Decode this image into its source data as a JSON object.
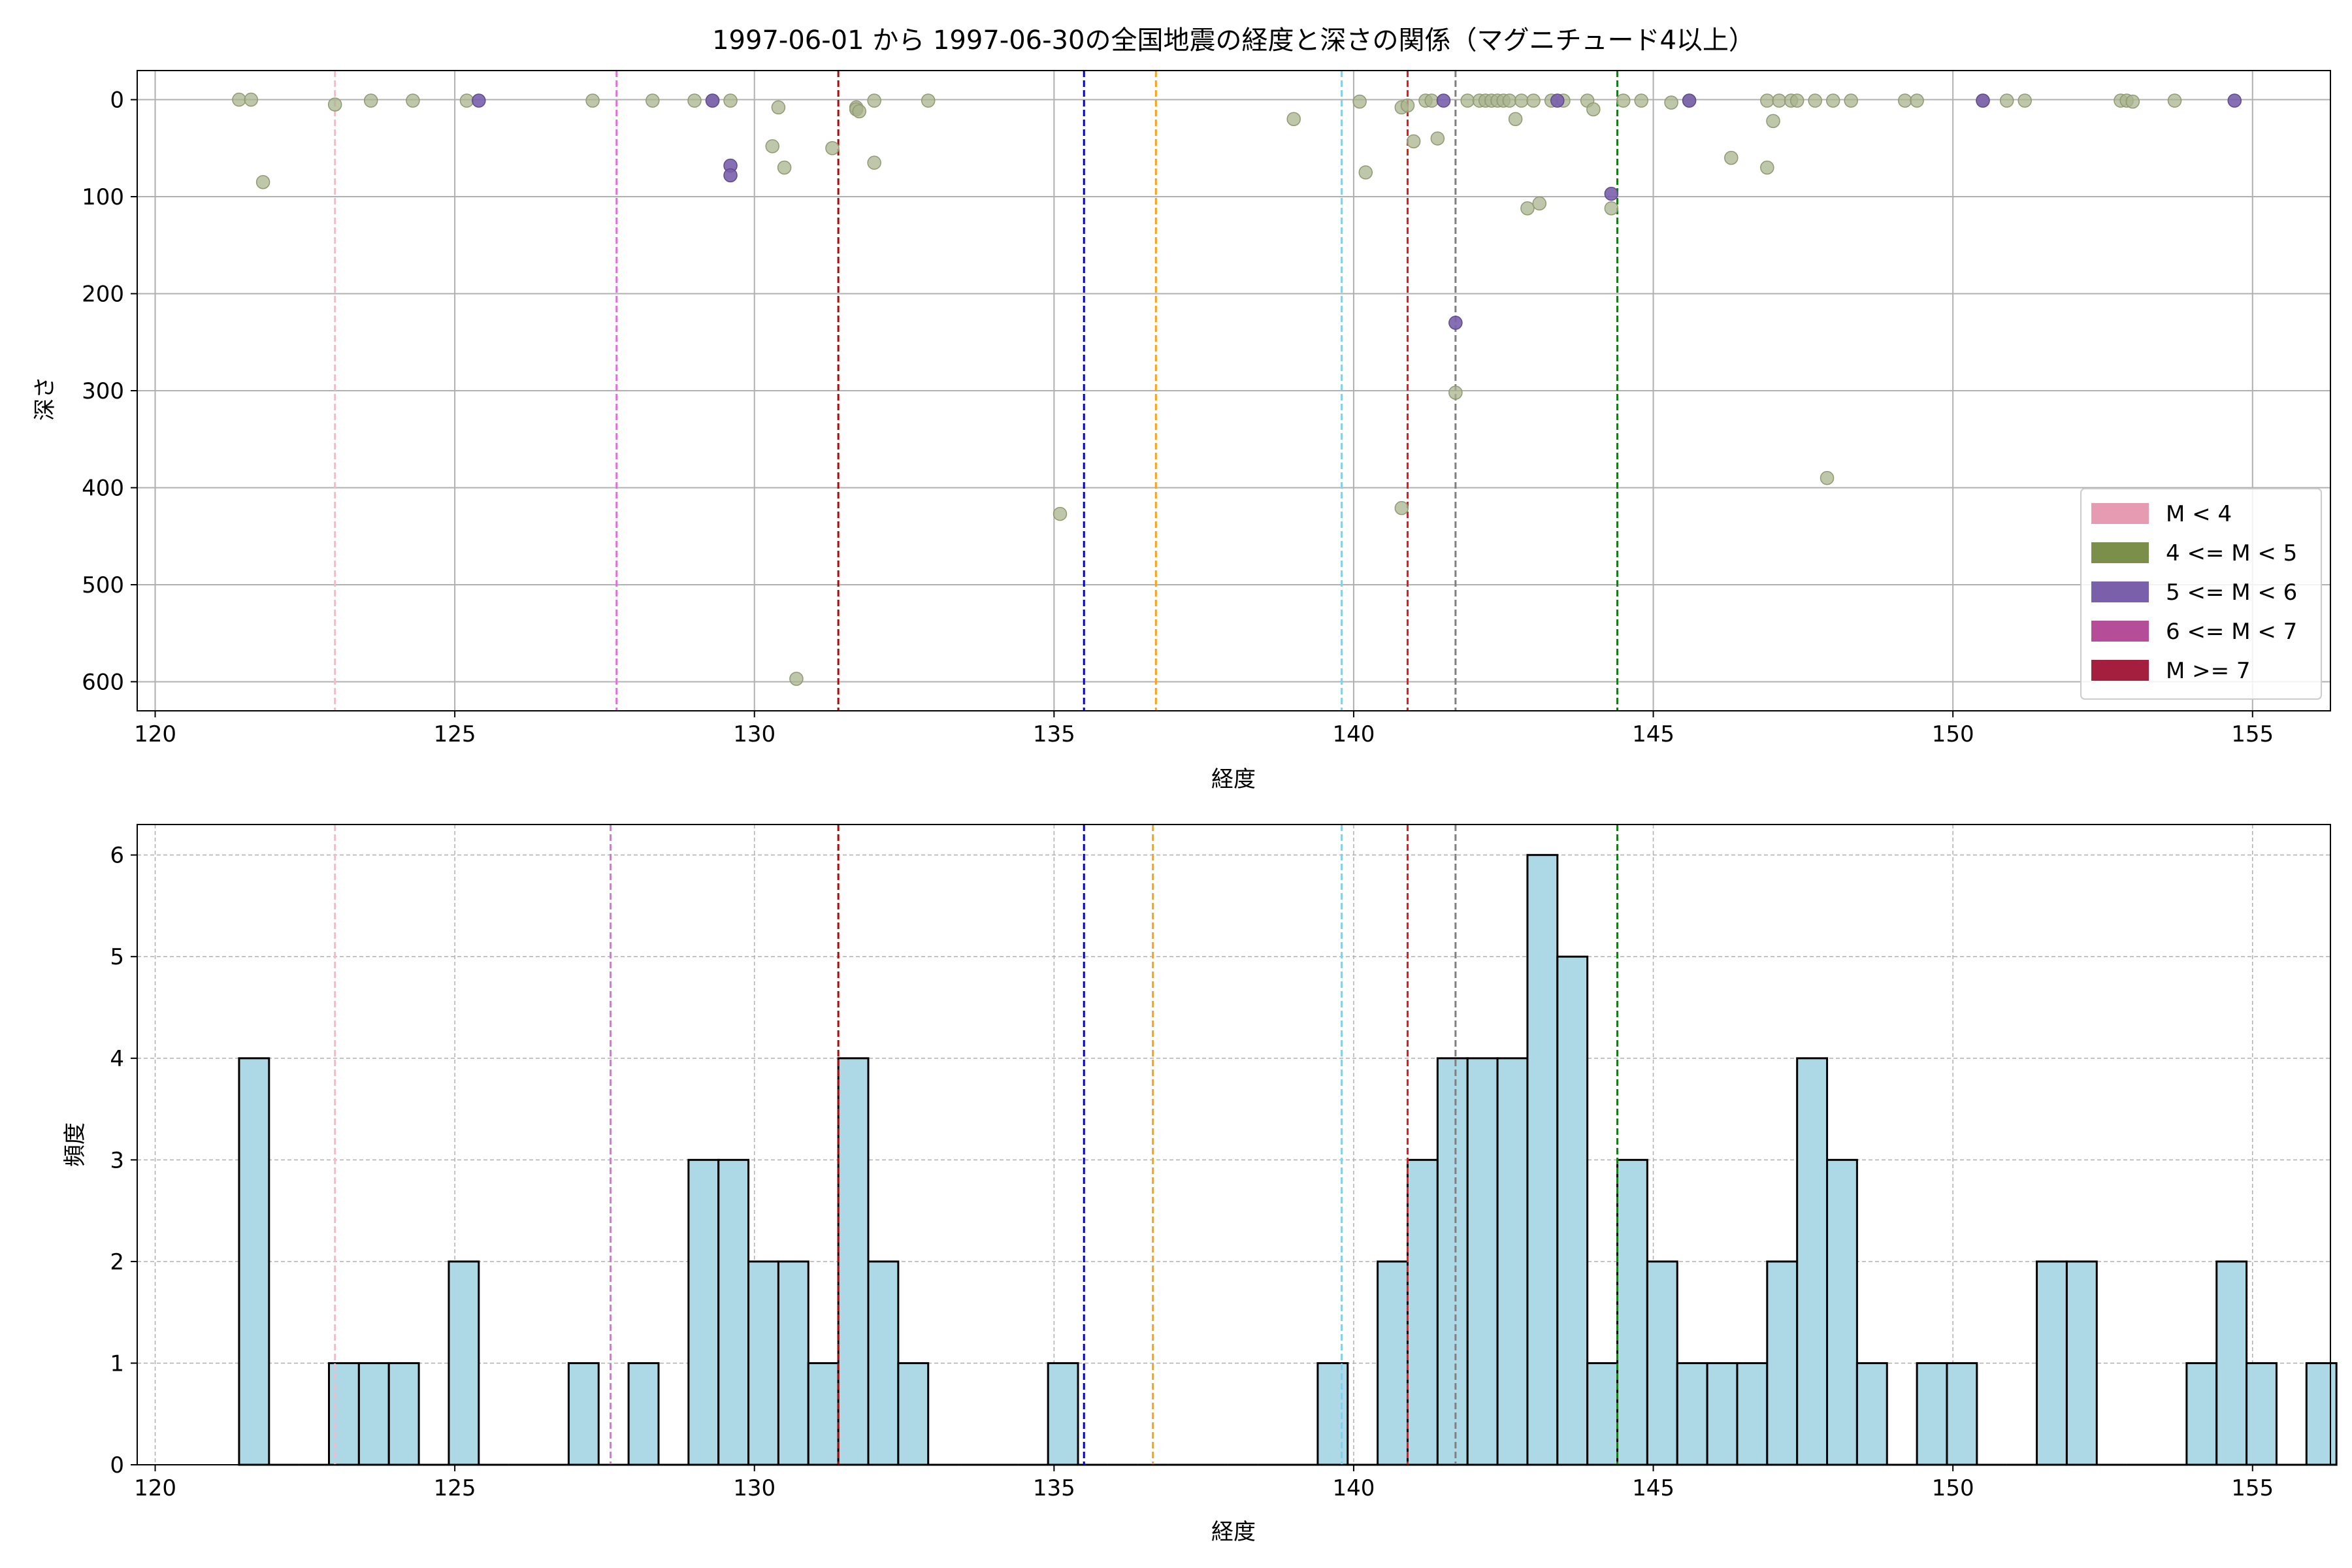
{
  "chart_data": [
    {
      "type": "scatter",
      "title": "1997-06-01 から 1997-06-30の全国地震の経度と深さの関係（マグニチュード4以上）",
      "xlabel": "経度",
      "ylabel": "深さ",
      "xlim": [
        119.7,
        156.3
      ],
      "ylim": [
        630,
        -30
      ],
      "y_inverted": true,
      "grid": true,
      "xticks": [
        "120",
        "125",
        "130",
        "135",
        "140",
        "145",
        "150",
        "155"
      ],
      "yticks": [
        "0",
        "100",
        "200",
        "300",
        "400",
        "500",
        "600"
      ],
      "legend_position": "lower-right",
      "legend": [
        {
          "label": "M < 4",
          "color": "#e79bb3"
        },
        {
          "label": "4 <= M < 5",
          "color": "#7b8f4a"
        },
        {
          "label": "5 <= M < 6",
          "color": "#7a5fab"
        },
        {
          "label": "6 <= M < 7",
          "color": "#b54d99"
        },
        {
          "label": "M >= 7",
          "color": "#a31f3d"
        }
      ],
      "point_colors": {
        "m4_5": "#a9b48e",
        "m5_6": "#7a5fab"
      },
      "series": [
        {
          "name": "4 <= M < 5",
          "points": [
            [
              121.4,
              0
            ],
            [
              121.6,
              0
            ],
            [
              121.8,
              85
            ],
            [
              123.0,
              5
            ],
            [
              123.6,
              1
            ],
            [
              124.3,
              1
            ],
            [
              125.2,
              1
            ],
            [
              127.3,
              1
            ],
            [
              128.3,
              1
            ],
            [
              129.0,
              1
            ],
            [
              129.3,
              1
            ],
            [
              129.6,
              1
            ],
            [
              130.4,
              8
            ],
            [
              130.3,
              48
            ],
            [
              130.5,
              70
            ],
            [
              131.3,
              50
            ],
            [
              131.7,
              8
            ],
            [
              131.7,
              10
            ],
            [
              131.75,
              12
            ],
            [
              132.0,
              1
            ],
            [
              132.0,
              65
            ],
            [
              132.9,
              1
            ],
            [
              130.7,
              597
            ],
            [
              135.1,
              427
            ],
            [
              139.0,
              20
            ],
            [
              140.1,
              2
            ],
            [
              140.2,
              75
            ],
            [
              140.8,
              8
            ],
            [
              140.9,
              6
            ],
            [
              141.0,
              43
            ],
            [
              141.2,
              1
            ],
            [
              141.3,
              1
            ],
            [
              141.4,
              40
            ],
            [
              141.7,
              302
            ],
            [
              141.9,
              1
            ],
            [
              142.1,
              1
            ],
            [
              142.2,
              1
            ],
            [
              142.3,
              1
            ],
            [
              142.4,
              1
            ],
            [
              142.5,
              1
            ],
            [
              142.6,
              1
            ],
            [
              142.7,
              20
            ],
            [
              142.8,
              1
            ],
            [
              142.9,
              112
            ],
            [
              143.0,
              1
            ],
            [
              143.1,
              107
            ],
            [
              143.3,
              1
            ],
            [
              143.5,
              1
            ],
            [
              143.9,
              1
            ],
            [
              144.0,
              10
            ],
            [
              144.3,
              112
            ],
            [
              144.5,
              1
            ],
            [
              144.8,
              1
            ],
            [
              145.3,
              3
            ],
            [
              145.6,
              1
            ],
            [
              146.3,
              60
            ],
            [
              146.9,
              1
            ],
            [
              146.9,
              70
            ],
            [
              147.0,
              22
            ],
            [
              147.1,
              1
            ],
            [
              147.3,
              1
            ],
            [
              147.4,
              1
            ],
            [
              147.7,
              1
            ],
            [
              147.9,
              390
            ],
            [
              148.0,
              1
            ],
            [
              148.3,
              1
            ],
            [
              149.2,
              1
            ],
            [
              149.4,
              1
            ],
            [
              150.5,
              1
            ],
            [
              150.9,
              1
            ],
            [
              151.2,
              1
            ],
            [
              152.8,
              1
            ],
            [
              152.9,
              1
            ],
            [
              153.0,
              2
            ],
            [
              153.7,
              1
            ],
            [
              140.8,
              421
            ]
          ]
        },
        {
          "name": "5 <= M < 6",
          "points": [
            [
              125.4,
              1
            ],
            [
              129.3,
              1
            ],
            [
              129.6,
              68
            ],
            [
              129.6,
              78
            ],
            [
              141.5,
              1
            ],
            [
              141.7,
              230
            ],
            [
              143.4,
              1
            ],
            [
              144.3,
              97
            ],
            [
              145.6,
              1
            ],
            [
              150.5,
              1
            ],
            [
              154.7,
              1
            ]
          ]
        }
      ],
      "vlines": [
        {
          "x": 123.0,
          "color": "#ffb6c1"
        },
        {
          "x": 127.7,
          "color": "#dd70dd"
        },
        {
          "x": 131.4,
          "color": "#a50d0d"
        },
        {
          "x": 135.5,
          "color": "#0000cc"
        },
        {
          "x": 136.7,
          "color": "#ffa010"
        },
        {
          "x": 139.8,
          "color": "#87ceeb"
        },
        {
          "x": 140.9,
          "color": "#ff1010"
        },
        {
          "x": 141.7,
          "color": "#808080"
        },
        {
          "x": 144.4,
          "color": "#1a7a1a"
        }
      ]
    },
    {
      "type": "bar",
      "title": "",
      "xlabel": "経度",
      "ylabel": "頻度",
      "xlim": [
        119.7,
        156.3
      ],
      "ylim": [
        0,
        6.3
      ],
      "grid": true,
      "bar_color": "#add8e6",
      "bin_start": 121.4,
      "bin_width": 0.5,
      "xticks": [
        "120",
        "125",
        "130",
        "135",
        "140",
        "145",
        "150",
        "155"
      ],
      "yticks": [
        "0",
        "1",
        "2",
        "3",
        "4",
        "5",
        "6"
      ],
      "counts": [
        4,
        0,
        0,
        1,
        1,
        1,
        0,
        2,
        0,
        0,
        0,
        1,
        0,
        1,
        0,
        3,
        3,
        2,
        2,
        1,
        4,
        2,
        1,
        0,
        0,
        0,
        0,
        1,
        0,
        0,
        0,
        0,
        0,
        0,
        0,
        0,
        1,
        0,
        2,
        3,
        4,
        4,
        4,
        6,
        5,
        1,
        3,
        2,
        1,
        1,
        1,
        2,
        4,
        3,
        1,
        0,
        1,
        1,
        0,
        0,
        2,
        2,
        0,
        0,
        0,
        1,
        2,
        1,
        0,
        1
      ],
      "vlines": [
        {
          "x": 123.0,
          "color": "#ffb6c1"
        },
        {
          "x": 127.6,
          "color": "#dd70dd"
        },
        {
          "x": 131.4,
          "color": "#a50d0d"
        },
        {
          "x": 135.5,
          "color": "#0000cc"
        },
        {
          "x": 136.65,
          "color": "#ffa010"
        },
        {
          "x": 139.8,
          "color": "#87ceeb"
        },
        {
          "x": 140.9,
          "color": "#ff1010"
        },
        {
          "x": 141.7,
          "color": "#808080"
        },
        {
          "x": 144.4,
          "color": "#1a7a1a"
        }
      ]
    }
  ]
}
